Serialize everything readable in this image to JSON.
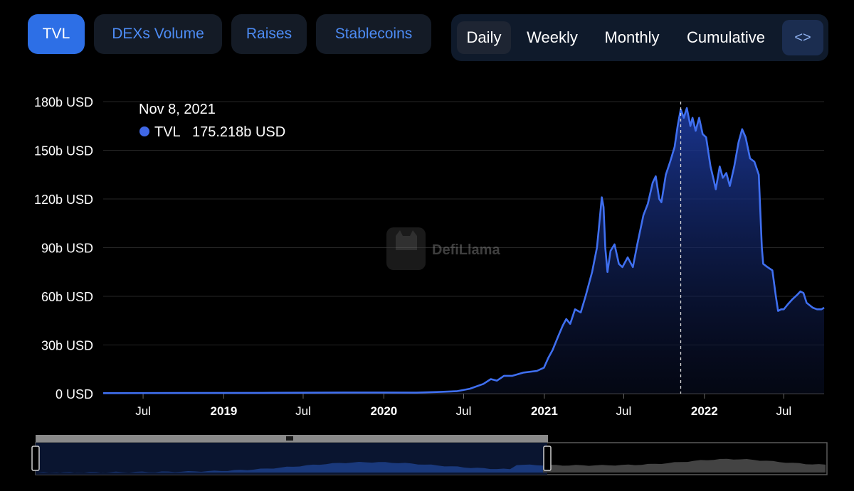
{
  "tabs": [
    {
      "label": "TVL",
      "active": true
    },
    {
      "label": "DEXs Volume",
      "active": false
    },
    {
      "label": "Raises",
      "active": false
    },
    {
      "label": "Stablecoins",
      "active": false
    }
  ],
  "periods": [
    {
      "label": "Daily",
      "active": true
    },
    {
      "label": "Weekly",
      "active": false
    },
    {
      "label": "Monthly",
      "active": false
    },
    {
      "label": "Cumulative",
      "active": false
    }
  ],
  "embed_icon": "code-brackets-icon",
  "embed_glyph": "<>",
  "watermark": "DefiLlama",
  "watermark_icon": "llama-logo-icon",
  "tooltip": {
    "date": "Nov 8, 2021",
    "series": "TVL",
    "value": "175.218b USD",
    "marker_color": "#4068e6"
  },
  "colors": {
    "line": "#3f6ff0",
    "accent": "#2d6fe6",
    "background": "#000000"
  },
  "chart_data": {
    "type": "area",
    "title": "",
    "xlabel": "",
    "ylabel": "",
    "ylim": [
      0,
      180
    ],
    "y_unit": "b USD",
    "y_ticks": [
      0,
      30,
      60,
      90,
      120,
      150,
      180
    ],
    "y_tick_labels": [
      "0 USD",
      "30b USD",
      "60b USD",
      "90b USD",
      "120b USD",
      "150b USD",
      "180b USD"
    ],
    "x_range": [
      "2018-04-01",
      "2022-10-01"
    ],
    "x_ticks": [
      {
        "date": "2018-07-01",
        "label": "Jul",
        "bold": false
      },
      {
        "date": "2019-01-01",
        "label": "2019",
        "bold": true
      },
      {
        "date": "2019-07-01",
        "label": "Jul",
        "bold": false
      },
      {
        "date": "2020-01-01",
        "label": "2020",
        "bold": true
      },
      {
        "date": "2020-07-01",
        "label": "Jul",
        "bold": false
      },
      {
        "date": "2021-01-01",
        "label": "2021",
        "bold": true
      },
      {
        "date": "2021-07-01",
        "label": "Jul",
        "bold": false
      },
      {
        "date": "2022-01-01",
        "label": "2022",
        "bold": true
      },
      {
        "date": "2022-07-01",
        "label": "Jul",
        "bold": false
      }
    ],
    "grid": true,
    "crosshair_date": "2021-11-08",
    "series": [
      {
        "name": "TVL",
        "points": [
          [
            "2018-04-01",
            0.3
          ],
          [
            "2018-10-01",
            0.4
          ],
          [
            "2019-04-01",
            0.5
          ],
          [
            "2019-10-01",
            0.7
          ],
          [
            "2020-01-01",
            0.7
          ],
          [
            "2020-03-15",
            0.6
          ],
          [
            "2020-05-01",
            1.0
          ],
          [
            "2020-06-15",
            1.5
          ],
          [
            "2020-07-15",
            3
          ],
          [
            "2020-08-15",
            6
          ],
          [
            "2020-09-01",
            9
          ],
          [
            "2020-09-15",
            8
          ],
          [
            "2020-10-01",
            11
          ],
          [
            "2020-10-20",
            11
          ],
          [
            "2020-11-15",
            13
          ],
          [
            "2020-12-15",
            14
          ],
          [
            "2020-12-31",
            16
          ],
          [
            "2021-01-10",
            22
          ],
          [
            "2021-01-20",
            27
          ],
          [
            "2021-02-01",
            35
          ],
          [
            "2021-02-12",
            42
          ],
          [
            "2021-02-20",
            46
          ],
          [
            "2021-03-01",
            43
          ],
          [
            "2021-03-12",
            52
          ],
          [
            "2021-03-25",
            50
          ],
          [
            "2021-04-05",
            60
          ],
          [
            "2021-04-20",
            75
          ],
          [
            "2021-05-01",
            90
          ],
          [
            "2021-05-05",
            101
          ],
          [
            "2021-05-12",
            121
          ],
          [
            "2021-05-16",
            115
          ],
          [
            "2021-05-20",
            90
          ],
          [
            "2021-05-25",
            75
          ],
          [
            "2021-06-01",
            88
          ],
          [
            "2021-06-10",
            92
          ],
          [
            "2021-06-20",
            80
          ],
          [
            "2021-06-28",
            78
          ],
          [
            "2021-07-10",
            84
          ],
          [
            "2021-07-22",
            78
          ],
          [
            "2021-08-01",
            92
          ],
          [
            "2021-08-15",
            110
          ],
          [
            "2021-08-25",
            117
          ],
          [
            "2021-09-05",
            130
          ],
          [
            "2021-09-12",
            134
          ],
          [
            "2021-09-20",
            120
          ],
          [
            "2021-09-25",
            118
          ],
          [
            "2021-10-05",
            135
          ],
          [
            "2021-10-15",
            143
          ],
          [
            "2021-10-25",
            152
          ],
          [
            "2021-11-01",
            165
          ],
          [
            "2021-11-08",
            175.218
          ],
          [
            "2021-11-15",
            170
          ],
          [
            "2021-11-22",
            176
          ],
          [
            "2021-11-30",
            165
          ],
          [
            "2021-12-05",
            170
          ],
          [
            "2021-12-12",
            162
          ],
          [
            "2021-12-20",
            170
          ],
          [
            "2021-12-28",
            160
          ],
          [
            "2022-01-05",
            158
          ],
          [
            "2022-01-15",
            140
          ],
          [
            "2022-01-22",
            132
          ],
          [
            "2022-01-27",
            126
          ],
          [
            "2022-02-05",
            140
          ],
          [
            "2022-02-12",
            133
          ],
          [
            "2022-02-20",
            136
          ],
          [
            "2022-02-28",
            128
          ],
          [
            "2022-03-10",
            140
          ],
          [
            "2022-03-20",
            155
          ],
          [
            "2022-03-28",
            163
          ],
          [
            "2022-04-05",
            158
          ],
          [
            "2022-04-15",
            145
          ],
          [
            "2022-04-25",
            143
          ],
          [
            "2022-05-05",
            135
          ],
          [
            "2022-05-12",
            90
          ],
          [
            "2022-05-15",
            80
          ],
          [
            "2022-05-25",
            78
          ],
          [
            "2022-06-05",
            76
          ],
          [
            "2022-06-13",
            60
          ],
          [
            "2022-06-18",
            51
          ],
          [
            "2022-06-25",
            52
          ],
          [
            "2022-07-01",
            52
          ],
          [
            "2022-07-10",
            55
          ],
          [
            "2022-07-20",
            58
          ],
          [
            "2022-08-01",
            61
          ],
          [
            "2022-08-08",
            63
          ],
          [
            "2022-08-15",
            62
          ],
          [
            "2022-08-22",
            56
          ],
          [
            "2022-09-05",
            53
          ],
          [
            "2022-09-15",
            52
          ],
          [
            "2022-09-25",
            52
          ],
          [
            "2022-10-01",
            53
          ]
        ]
      }
    ]
  }
}
